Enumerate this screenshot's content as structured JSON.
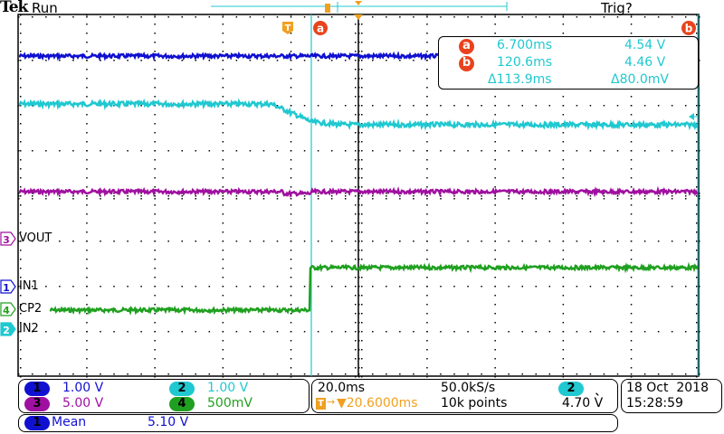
{
  "header": {
    "brand": "Tek",
    "run_state": "Run",
    "trigger_state": "Trig?"
  },
  "colors": {
    "ch1": "#1010d0",
    "ch2": "#20c8d0",
    "ch3": "#a010a0",
    "ch4": "#20a020",
    "trigger": "#f0a020",
    "cursor": "#20c8d0",
    "cursor_badge": "#e8431c"
  },
  "cursors": {
    "a_label": "a",
    "b_label": "b",
    "a_time": "6.700ms",
    "a_volt": "4.54 V",
    "b_time": "120.6ms",
    "b_volt": "4.46 V",
    "delta_time": "Δ113.9ms",
    "delta_volt": "Δ80.0mV"
  },
  "channel_markers": [
    {
      "num": "3",
      "label": "VOUT"
    },
    {
      "num": "1",
      "label": "IN1"
    },
    {
      "num": "4",
      "label": "CP2"
    },
    {
      "num": "2",
      "label": "IN2"
    }
  ],
  "channels": [
    {
      "num": "1",
      "scale": "1.00 V"
    },
    {
      "num": "2",
      "scale": "1.00 V"
    },
    {
      "num": "3",
      "scale": "5.00 V"
    },
    {
      "num": "4",
      "scale": "500mV"
    }
  ],
  "timebase": {
    "scale": "20.0ms",
    "sample_rate": "50.0kS/s",
    "trigger_position": "▼20.6000ms",
    "record_length": "10k points",
    "trigger_source": "2",
    "trigger_slope": "falling",
    "trigger_level": "4.70 V"
  },
  "datetime": {
    "date": "18 Oct  2018",
    "time": "15:28:59"
  },
  "measurement": {
    "channel": "1",
    "name": "Mean",
    "value": "5.10 V"
  },
  "markers": {
    "trigger_glyph": "T",
    "slope_glyph": "ˎ"
  }
}
